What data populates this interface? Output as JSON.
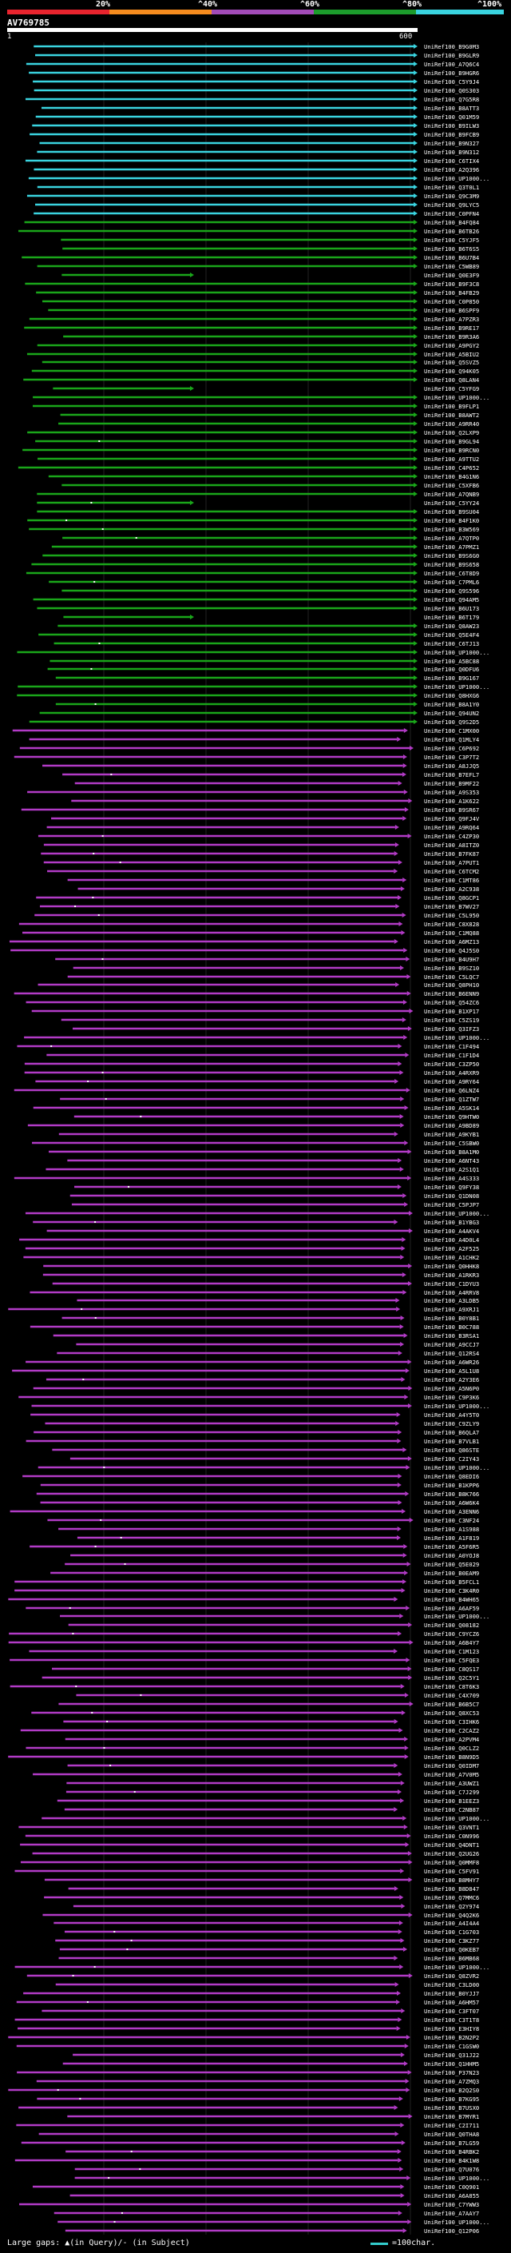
{
  "scale": {
    "labels": [
      "20%",
      "^40%",
      "^60%",
      "^80%",
      "^100%"
    ],
    "colors": [
      "#e8242e",
      "#f58b1e",
      "#a24bb7",
      "#1c9c2c",
      "#3ad4e0"
    ]
  },
  "query": {
    "id": "AV769785",
    "start": "1",
    "end": "600"
  },
  "chart_data": {
    "type": "alignment_track",
    "title": "AV769785",
    "x_range": [
      1,
      600
    ],
    "colors": {
      "cyan": "#3ad4e0",
      "green": "#1aa61a",
      "magenta": "#b23bc6"
    },
    "hits": [
      "UniRef100_B9G0M3",
      "UniRef100_B9GLR9",
      "UniRef100_A7Q6C4",
      "UniRef100_B9HGR6",
      "UniRef100_C5Y9J4",
      "UniRef100_Q0S303",
      "UniRef100_Q7G5R8",
      "UniRef100_B8ATT3",
      "UniRef100_Q01M59",
      "UniRef100_B9ILW3",
      "UniRef100_B9FCB9",
      "UniRef100_B9N327",
      "UniRef100_B9N312",
      "UniRef100_C6TIX4",
      "UniRef100_A2Q396",
      "UniRef100_UP1000...",
      "UniRef100_Q3T0L1",
      "UniRef100_Q9C3M9",
      "UniRef100_Q9LYC5",
      "UniRef100_C0PFN4",
      "UniRef100_B4FQ84",
      "UniRef100_B6TB26",
      "UniRef100_C5YJF5",
      "UniRef100_B6T6S5",
      "UniRef100_B6U7B4",
      "UniRef100_C5WB89",
      "UniRef100_Q0E3F9",
      "UniRef100_B9F3C8",
      "UniRef100_B4FB29",
      "UniRef100_C0P850",
      "UniRef100_B6SPF9",
      "UniRef100_A7PZR3",
      "UniRef100_B9RE17",
      "UniRef100_B9R3A6",
      "UniRef100_A9PGY2",
      "UniRef100_A5BIU2",
      "UniRef100_Q5SVZ5",
      "UniRef100_Q94K05",
      "UniRef100_Q8LAN4",
      "UniRef100_C5YFG9",
      "UniRef100_UP1000...",
      "UniRef100_B9FLP1",
      "UniRef100_B8AWT2",
      "UniRef100_A9RR40",
      "UniRef100_Q2LXP9",
      "UniRef100_B9GL94",
      "UniRef100_B9RCN0",
      "UniRef100_A9TTU2",
      "UniRef100_C4P652",
      "UniRef100_B4G1N6",
      "UniRef100_C5XFB6",
      "UniRef100_A7QNB9",
      "UniRef100_C5YY24",
      "UniRef100_B9SU04",
      "UniRef100_B4F1K0",
      "UniRef100_B3W569",
      "UniRef100_A7QTP0",
      "UniRef100_A7PMZ1",
      "UniRef100_B9S6G0",
      "UniRef100_B9S658",
      "UniRef100_C6T8D9",
      "UniRef100_C7PML6",
      "UniRef100_Q9S596",
      "UniRef100_Q94AM5",
      "UniRef100_B6U173",
      "UniRef100_B6T179",
      "UniRef100_Q8AW23",
      "UniRef100_Q5E4F4",
      "UniRef100_C6TJ13",
      "UniRef100_UP1000...",
      "UniRef100_A5BC88",
      "UniRef100_Q0DFU6",
      "UniRef100_B9G167",
      "UniRef100_UP1000...",
      "UniRef100_Q8HXG6",
      "UniRef100_B8A1Y0",
      "UniRef100_Q94UN2",
      "UniRef100_Q9S2D5",
      "UniRef100_C1MX00",
      "UniRef100_Q1MLY4",
      "UniRef100_C6P692",
      "UniRef100_C3P7T2",
      "UniRef100_A8JJQ5",
      "UniRef100_B7EFL7",
      "UniRef100_B9MF22",
      "UniRef100_A9S353",
      "UniRef100_A1K622",
      "UniRef100_B9SR67",
      "UniRef100_Q9FJ4V",
      "UniRef100_A9RQ64",
      "UniRef100_C4ZP30",
      "UniRef100_A8ITZ0",
      "UniRef100_B7FK87",
      "UniRef100_A7PUT1",
      "UniRef100_C6TCM2",
      "UniRef100_C1MT86",
      "UniRef100_A2C938",
      "UniRef100_Q8GCP1",
      "UniRef100_B7WV27",
      "UniRef100_C5L950",
      "UniRef100_C8X828",
      "UniRef100_C1MQ88",
      "UniRef100_A6MZ13",
      "UniRef100_Q4J5S0",
      "UniRef100_B4U9H7",
      "UniRef100_B9SZ10",
      "UniRef100_C5LQC7",
      "UniRef100_Q8PH10",
      "UniRef100_B6ENN9",
      "UniRef100_Q54ZC6",
      "UniRef100_B1XP17",
      "UniRef100_C5ZS19",
      "UniRef100_Q3IFZ3",
      "UniRef100_UP1000...",
      "UniRef100_C1F494",
      "UniRef100_C1F1D4",
      "UniRef100_C3ZP50",
      "UniRef100_A4RXR9",
      "UniRef100_A9RY64",
      "UniRef100_Q6LNZ4",
      "UniRef100_Q1ZTW7",
      "UniRef100_A5SK14",
      "UniRef100_Q9HTW0",
      "UniRef100_A9BD89",
      "UniRef100_A9KYB1",
      "UniRef100_C5SBW0",
      "UniRef100_B8A1M0",
      "UniRef100_A6NT43",
      "UniRef100_A2S1Q1",
      "UniRef100_A4S333",
      "UniRef100_Q9FY38",
      "UniRef100_Q1DN08",
      "UniRef100_C5PJP7",
      "UniRef100_UP1000...",
      "UniRef100_B1YBG3",
      "UniRef100_A4AKV4",
      "UniRef100_A4D0L4",
      "UniRef100_A2F525",
      "UniRef100_A1CHK2",
      "UniRef100_Q0HHK8",
      "UniRef100_A1RKR3",
      "UniRef100_C1DYU3",
      "UniRef100_A4RRV8",
      "UniRef100_A3LDB5",
      "UniRef100_A9XRJ1",
      "UniRef100_B0Y8B1",
      "UniRef100_B0C788",
      "UniRef100_B3RSA1",
      "UniRef100_A9CCJ7",
      "UniRef100_Q12RS4",
      "UniRef100_A6WR26",
      "UniRef100_A5L1U8",
      "UniRef100_A2Y3E6",
      "UniRef100_A5N6P0",
      "UniRef100_C9P3K6",
      "UniRef100_UP1000...",
      "UniRef100_A4Y5T0",
      "UniRef100_C9ZLY9",
      "UniRef100_B6QLA7",
      "UniRef100_B7VLB1",
      "UniRef100_Q86STE",
      "UniRef100_C2IY43",
      "UniRef100_UP1000...",
      "UniRef100_Q8EDI6",
      "UniRef100_B1KPP6",
      "UniRef100_B8K766",
      "UniRef100_A6W6K4",
      "UniRef100_A3ENN6",
      "UniRef100_C3NF24",
      "UniRef100_A1S988",
      "UniRef100_A1F819",
      "UniRef100_A5F6R5",
      "UniRef100_A0YOJ8",
      "UniRef100_Q5E029",
      "UniRef100_B0EAM9",
      "UniRef100_B5FCL1",
      "UniRef100_C3K4R0",
      "UniRef100_B4WH65",
      "UniRef100_A6AF59",
      "UniRef100_UP1000...",
      "UniRef100_Q08182",
      "UniRef100_C9YCZ6",
      "UniRef100_A6B4Y7",
      "UniRef100_C1M123",
      "UniRef100_C5FQE3",
      "UniRef100_C8QS17",
      "UniRef100_Q2C5Y1",
      "UniRef100_C8T6K3",
      "UniRef100_C4X709",
      "UniRef100_B6B5C7",
      "UniRef100_Q8XC53",
      "UniRef100_C3IHK6",
      "UniRef100_C2CAZ2",
      "UniRef100_A2PVM4",
      "UniRef100_Q0CLZ2",
      "UniRef100_B8N9D5",
      "UniRef100_Q0IDM7",
      "UniRef100_A7V0M5",
      "UniRef100_A3UWZ1",
      "UniRef100_C7J299",
      "UniRef100_B1EEZ3",
      "UniRef100_C2NB87",
      "UniRef100_UP1000...",
      "UniRef100_Q3VNT1",
      "UniRef100_C0N996",
      "UniRef100_Q4DNT1",
      "UniRef100_Q2UG26",
      "UniRef100_Q0MMF8",
      "UniRef100_C5FV91",
      "UniRef100_B8MHY7",
      "UniRef100_B8D847",
      "UniRef100_Q7MMC6",
      "UniRef100_Q2Y974",
      "UniRef100_Q4Q2K6",
      "UniRef100_A4I4A4",
      "UniRef100_C1G703",
      "UniRef100_C3KZ77",
      "UniRef100_Q0KEB7",
      "UniRef100_B6MB68",
      "UniRef100_UP1000...",
      "UniRef100_Q8ZVR2",
      "UniRef100_C3LD00",
      "UniRef100_B0YJJ7",
      "UniRef100_A6HM57",
      "UniRef100_C3FT07",
      "UniRef100_C3T1T8",
      "UniRef100_E3HIY8",
      "UniRef100_B2N2P2",
      "UniRef100_C1GSW0",
      "UniRef100_Q31J22",
      "UniRef100_Q1HHM5",
      "UniRef100_P37N23",
      "UniRef100_A7ZMQ3",
      "UniRef100_B2Q2S0",
      "UniRef100_B7KG95",
      "UniRef100_B7USX0",
      "UniRef100_B7MYR1",
      "UniRef100_C2I711",
      "UniRef100_Q0THA8",
      "UniRef100_B7LG59",
      "UniRef100_B4RBK2",
      "UniRef100_B4K1W8",
      "UniRef100_Q7U076",
      "UniRef100_UP1000...",
      "UniRef100_C0Q901",
      "UniRef100_A6A855",
      "UniRef100_C7YWW3",
      "UniRef100_A7AAY7",
      "UniRef100_UP1000...",
      "UniRef100_Q12P06"
    ]
  },
  "footer": {
    "gaps_label": "Large gaps: ▲(in Query)/- (in Subject)",
    "legend_label": "=100char."
  }
}
